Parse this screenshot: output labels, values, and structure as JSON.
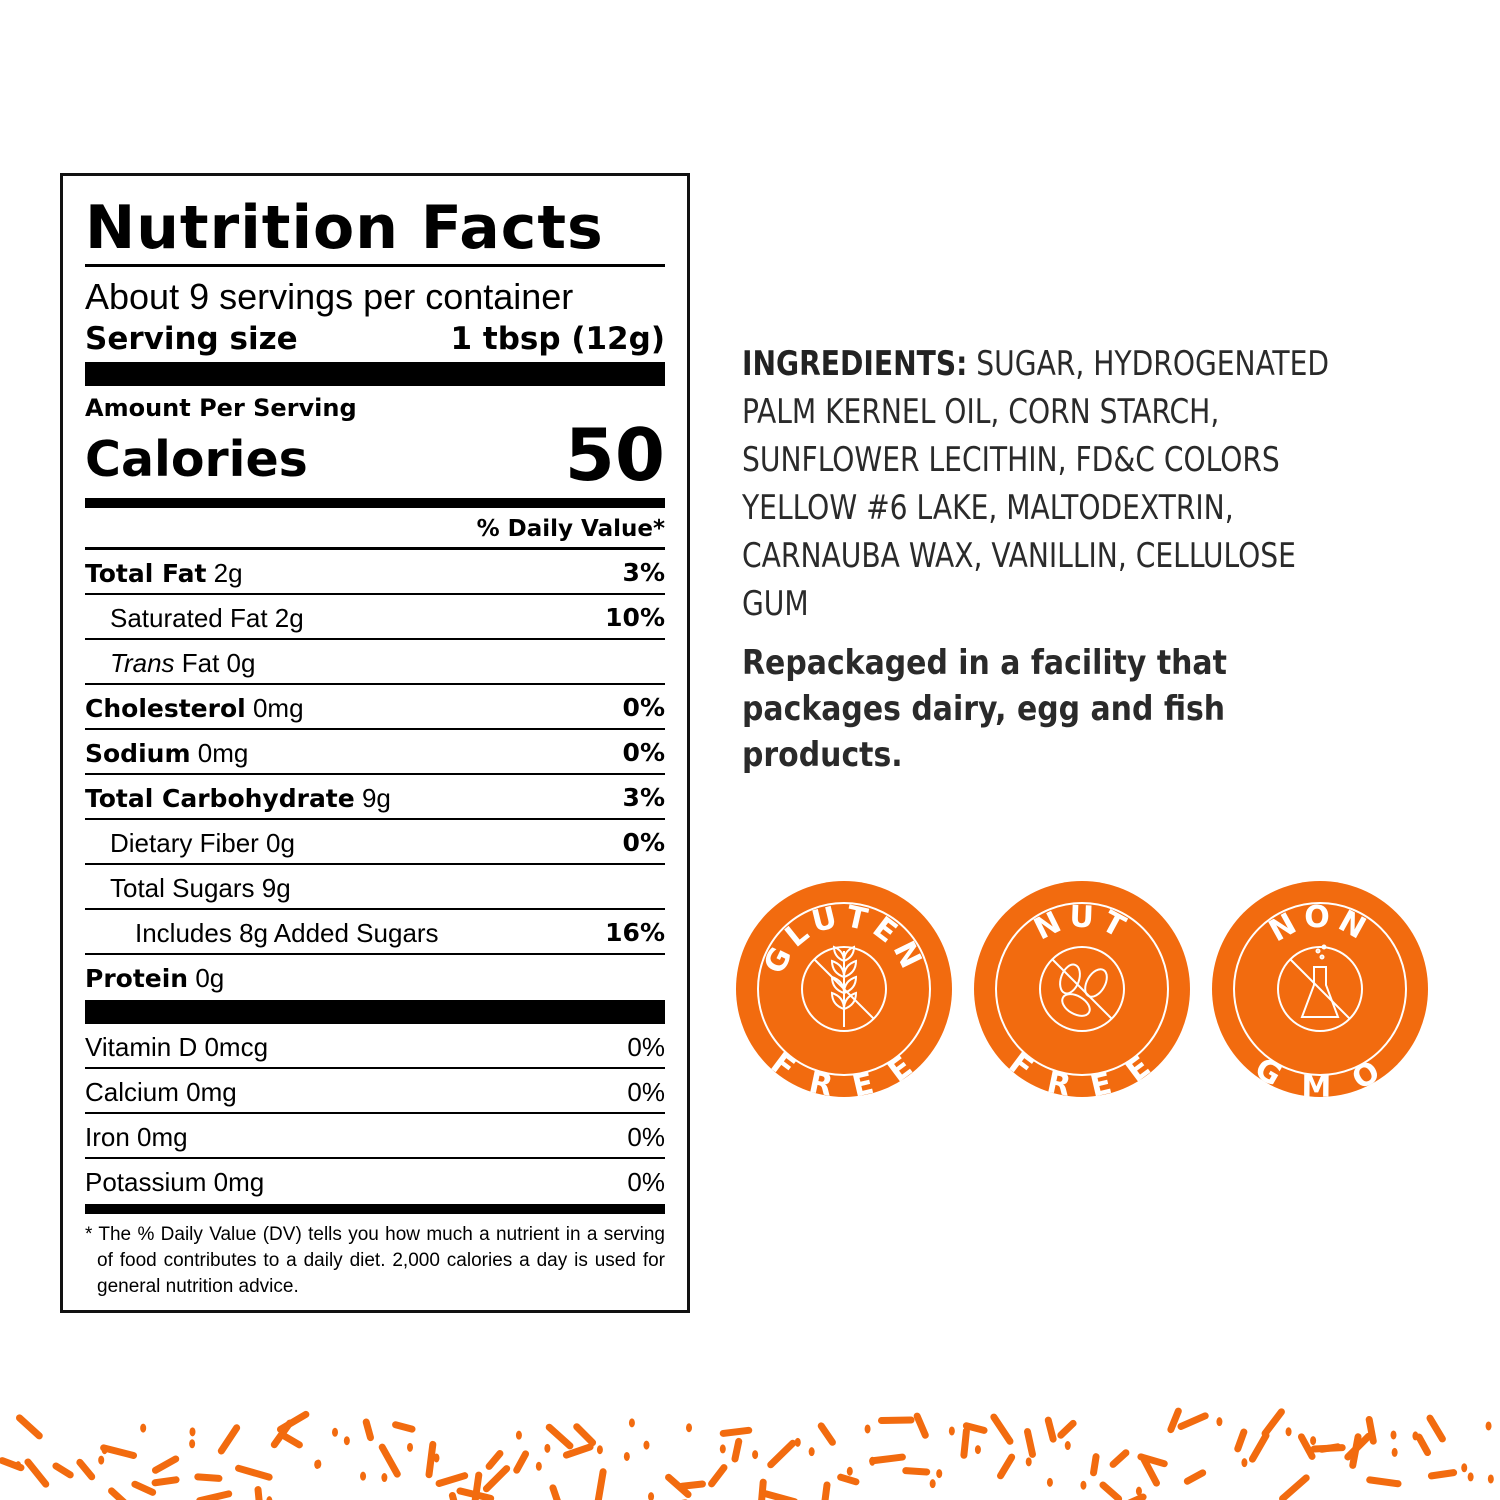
{
  "nutrition": {
    "title": "Nutrition Facts",
    "servings": "About 9 servings per container",
    "serving_size_label": "Serving size",
    "serving_size_value": "1 tbsp (12g)",
    "amount_per_serving": "Amount Per Serving",
    "calories_label": "Calories",
    "calories_value": "50",
    "dv_header": "% Daily Value*",
    "rows": [
      {
        "bold": "Total Fat",
        "amount": "2g",
        "dv": "3%"
      },
      {
        "label": "Saturated Fat 2g",
        "dv": "10%"
      },
      {
        "italic": "Trans",
        "label": "Fat 0g",
        "dv": ""
      },
      {
        "bold": "Cholesterol",
        "amount": "0mg",
        "dv": "0%"
      },
      {
        "bold": "Sodium",
        "amount": "0mg",
        "dv": "0%"
      },
      {
        "bold": "Total Carbohydrate",
        "amount": "9g",
        "dv": "3%"
      },
      {
        "label": "Dietary Fiber 0g",
        "dv": "0%"
      },
      {
        "label": "Total Sugars 9g",
        "dv": ""
      },
      {
        "label": "Includes 8g Added Sugars",
        "dv": "16%"
      },
      {
        "bold": "Protein",
        "amount": "0g",
        "dv": ""
      }
    ],
    "vitamins": [
      {
        "label": "Vitamin D 0mcg",
        "dv": "0%"
      },
      {
        "label": "Calcium 0mg",
        "dv": "0%"
      },
      {
        "label": "Iron 0mg",
        "dv": "0%"
      },
      {
        "label": "Potassium 0mg",
        "dv": "0%"
      }
    ],
    "footnote": "* The % Daily Value (DV) tells you how much a nutrient in a serving of food contributes to a daily diet. 2,000 calories a day is used for general nutrition advice."
  },
  "ingredients": {
    "label": "INGREDIENTS:",
    "text": " SUGAR, HYDROGENATED PALM KERNEL OIL, CORN STARCH, SUNFLOWER LECITHIN, FD&C COLORS YELLOW #6 LAKE, MALTODEXTRIN, CARNAUBA WAX, VANILLIN, CELLULOSE GUM",
    "facility": "Repackaged in a facility that packages dairy, egg and fish products."
  },
  "badges": [
    {
      "top": "GLUTEN",
      "bottom": "FREE",
      "icon": "wheat-icon"
    },
    {
      "top": "NUT",
      "bottom": "FREE",
      "icon": "peanut-icon"
    },
    {
      "top": "NON",
      "bottom": "GMO",
      "icon": "flask-icon"
    }
  ],
  "colors": {
    "accent": "#f26b0f",
    "text": "#2a2a2a"
  }
}
